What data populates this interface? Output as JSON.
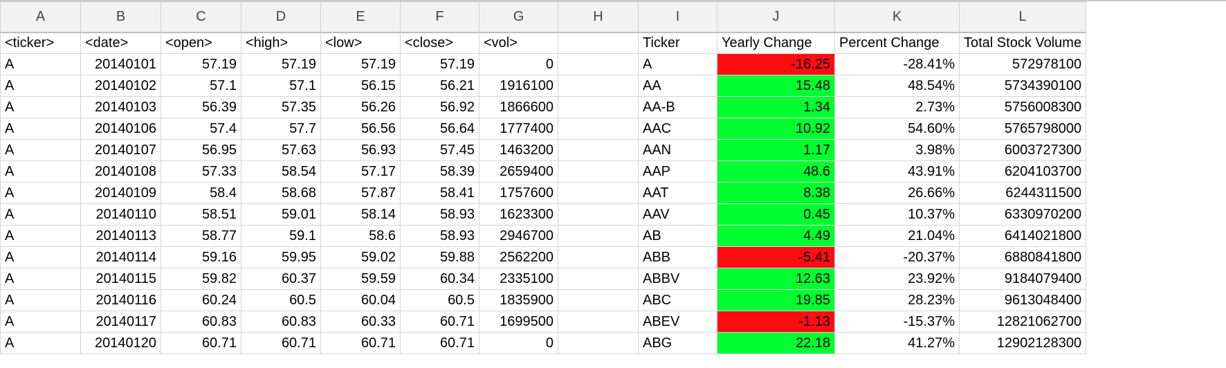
{
  "sheet": {
    "column_letters": [
      "A",
      "B",
      "C",
      "D",
      "E",
      "F",
      "G",
      "H",
      "I",
      "J",
      "K",
      "L"
    ],
    "headers": [
      "<ticker>",
      "<date>",
      "<open>",
      "<high>",
      "<low>",
      "<close>",
      "<vol>",
      "",
      "Ticker",
      "Yearly Change",
      "Percent Change",
      "Total Stock Volume"
    ],
    "colors": {
      "positive": "#00ff31",
      "negative": "#ff0d12"
    },
    "rows": [
      {
        "ticker": "A",
        "date": "20140101",
        "open": "57.19",
        "high": "57.19",
        "low": "57.19",
        "close": "57.19",
        "vol": "0",
        "sum_ticker": "A",
        "yearly_change": "-16.25",
        "change_status": "neg",
        "percent_change": "-28.41%",
        "total_volume": "572978100"
      },
      {
        "ticker": "A",
        "date": "20140102",
        "open": "57.1",
        "high": "57.1",
        "low": "56.15",
        "close": "56.21",
        "vol": "1916100",
        "sum_ticker": "AA",
        "yearly_change": "15.48",
        "change_status": "pos",
        "percent_change": "48.54%",
        "total_volume": "5734390100"
      },
      {
        "ticker": "A",
        "date": "20140103",
        "open": "56.39",
        "high": "57.35",
        "low": "56.26",
        "close": "56.92",
        "vol": "1866600",
        "sum_ticker": "AA-B",
        "yearly_change": "1.34",
        "change_status": "pos",
        "percent_change": "2.73%",
        "total_volume": "5756008300"
      },
      {
        "ticker": "A",
        "date": "20140106",
        "open": "57.4",
        "high": "57.7",
        "low": "56.56",
        "close": "56.64",
        "vol": "1777400",
        "sum_ticker": "AAC",
        "yearly_change": "10.92",
        "change_status": "pos",
        "percent_change": "54.60%",
        "total_volume": "5765798000"
      },
      {
        "ticker": "A",
        "date": "20140107",
        "open": "56.95",
        "high": "57.63",
        "low": "56.93",
        "close": "57.45",
        "vol": "1463200",
        "sum_ticker": "AAN",
        "yearly_change": "1.17",
        "change_status": "pos",
        "percent_change": "3.98%",
        "total_volume": "6003727300"
      },
      {
        "ticker": "A",
        "date": "20140108",
        "open": "57.33",
        "high": "58.54",
        "low": "57.17",
        "close": "58.39",
        "vol": "2659400",
        "sum_ticker": "AAP",
        "yearly_change": "48.6",
        "change_status": "pos",
        "percent_change": "43.91%",
        "total_volume": "6204103700"
      },
      {
        "ticker": "A",
        "date": "20140109",
        "open": "58.4",
        "high": "58.68",
        "low": "57.87",
        "close": "58.41",
        "vol": "1757600",
        "sum_ticker": "AAT",
        "yearly_change": "8.38",
        "change_status": "pos",
        "percent_change": "26.66%",
        "total_volume": "6244311500"
      },
      {
        "ticker": "A",
        "date": "20140110",
        "open": "58.51",
        "high": "59.01",
        "low": "58.14",
        "close": "58.93",
        "vol": "1623300",
        "sum_ticker": "AAV",
        "yearly_change": "0.45",
        "change_status": "pos",
        "percent_change": "10.37%",
        "total_volume": "6330970200"
      },
      {
        "ticker": "A",
        "date": "20140113",
        "open": "58.77",
        "high": "59.1",
        "low": "58.6",
        "close": "58.93",
        "vol": "2946700",
        "sum_ticker": "AB",
        "yearly_change": "4.49",
        "change_status": "pos",
        "percent_change": "21.04%",
        "total_volume": "6414021800"
      },
      {
        "ticker": "A",
        "date": "20140114",
        "open": "59.16",
        "high": "59.95",
        "low": "59.02",
        "close": "59.88",
        "vol": "2562200",
        "sum_ticker": "ABB",
        "yearly_change": "-5.41",
        "change_status": "neg",
        "percent_change": "-20.37%",
        "total_volume": "6880841800"
      },
      {
        "ticker": "A",
        "date": "20140115",
        "open": "59.82",
        "high": "60.37",
        "low": "59.59",
        "close": "60.34",
        "vol": "2335100",
        "sum_ticker": "ABBV",
        "yearly_change": "12.63",
        "change_status": "pos",
        "percent_change": "23.92%",
        "total_volume": "9184079400"
      },
      {
        "ticker": "A",
        "date": "20140116",
        "open": "60.24",
        "high": "60.5",
        "low": "60.04",
        "close": "60.5",
        "vol": "1835900",
        "sum_ticker": "ABC",
        "yearly_change": "19.85",
        "change_status": "pos",
        "percent_change": "28.23%",
        "total_volume": "9613048400"
      },
      {
        "ticker": "A",
        "date": "20140117",
        "open": "60.83",
        "high": "60.83",
        "low": "60.33",
        "close": "60.71",
        "vol": "1699500",
        "sum_ticker": "ABEV",
        "yearly_change": "-1.13",
        "change_status": "neg",
        "percent_change": "-15.37%",
        "total_volume": "12821062700"
      },
      {
        "ticker": "A",
        "date": "20140120",
        "open": "60.71",
        "high": "60.71",
        "low": "60.71",
        "close": "60.71",
        "vol": "0",
        "sum_ticker": "ABG",
        "yearly_change": "22.18",
        "change_status": "pos",
        "percent_change": "41.27%",
        "total_volume": "12902128300"
      }
    ]
  }
}
